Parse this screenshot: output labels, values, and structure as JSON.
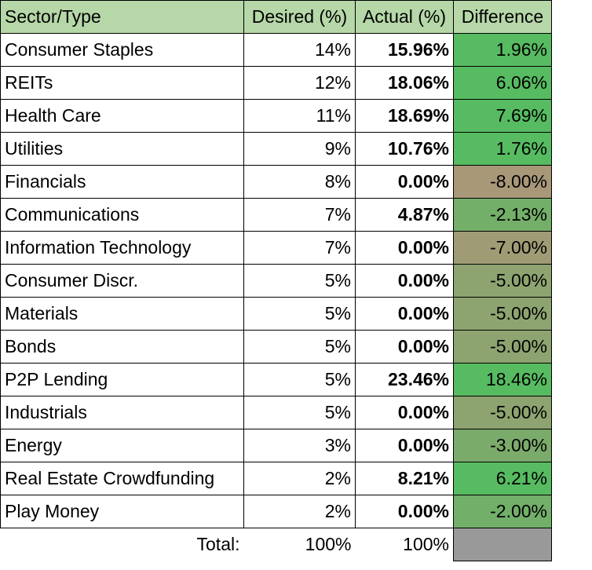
{
  "chart_data": {
    "type": "table",
    "columns": [
      "Sector/Type",
      "Desired (%)",
      "Actual (%)",
      "Difference"
    ],
    "rows": [
      {
        "sector": "Consumer Staples",
        "desired": "14%",
        "actual": "15.96%",
        "difference": "1.96%",
        "diff_value": 1.96
      },
      {
        "sector": "REITs",
        "desired": "12%",
        "actual": "18.06%",
        "difference": "6.06%",
        "diff_value": 6.06
      },
      {
        "sector": "Health Care",
        "desired": "11%",
        "actual": "18.69%",
        "difference": "7.69%",
        "diff_value": 7.69
      },
      {
        "sector": "Utilities",
        "desired": "9%",
        "actual": "10.76%",
        "difference": "1.76%",
        "diff_value": 1.76
      },
      {
        "sector": "Financials",
        "desired": "8%",
        "actual": "0.00%",
        "difference": "-8.00%",
        "diff_value": -8.0
      },
      {
        "sector": "Communications",
        "desired": "7%",
        "actual": "4.87%",
        "difference": "-2.13%",
        "diff_value": -2.13
      },
      {
        "sector": "Information Technology",
        "desired": "7%",
        "actual": "0.00%",
        "difference": "-7.00%",
        "diff_value": -7.0
      },
      {
        "sector": "Consumer Discr.",
        "desired": "5%",
        "actual": "0.00%",
        "difference": "-5.00%",
        "diff_value": -5.0
      },
      {
        "sector": "Materials",
        "desired": "5%",
        "actual": "0.00%",
        "difference": "-5.00%",
        "diff_value": -5.0
      },
      {
        "sector": "Bonds",
        "desired": "5%",
        "actual": "0.00%",
        "difference": "-5.00%",
        "diff_value": -5.0
      },
      {
        "sector": "P2P Lending",
        "desired": "5%",
        "actual": "23.46%",
        "difference": "18.46%",
        "diff_value": 18.46
      },
      {
        "sector": "Industrials",
        "desired": "5%",
        "actual": "0.00%",
        "difference": "-5.00%",
        "diff_value": -5.0
      },
      {
        "sector": "Energy",
        "desired": "3%",
        "actual": "0.00%",
        "difference": "-3.00%",
        "diff_value": -3.0
      },
      {
        "sector": "Real Estate Crowdfunding",
        "desired": "2%",
        "actual": "8.21%",
        "difference": "6.21%",
        "diff_value": 6.21
      },
      {
        "sector": "Play Money",
        "desired": "2%",
        "actual": "0.00%",
        "difference": "-2.00%",
        "diff_value": -2.0
      }
    ],
    "total": {
      "label": "Total:",
      "desired": "100%",
      "actual": "100%"
    },
    "colors": {
      "header_bg": "#b6d7a8",
      "positive": "#57bb61",
      "negative": "#a89878",
      "total_empty": "#999999"
    }
  }
}
